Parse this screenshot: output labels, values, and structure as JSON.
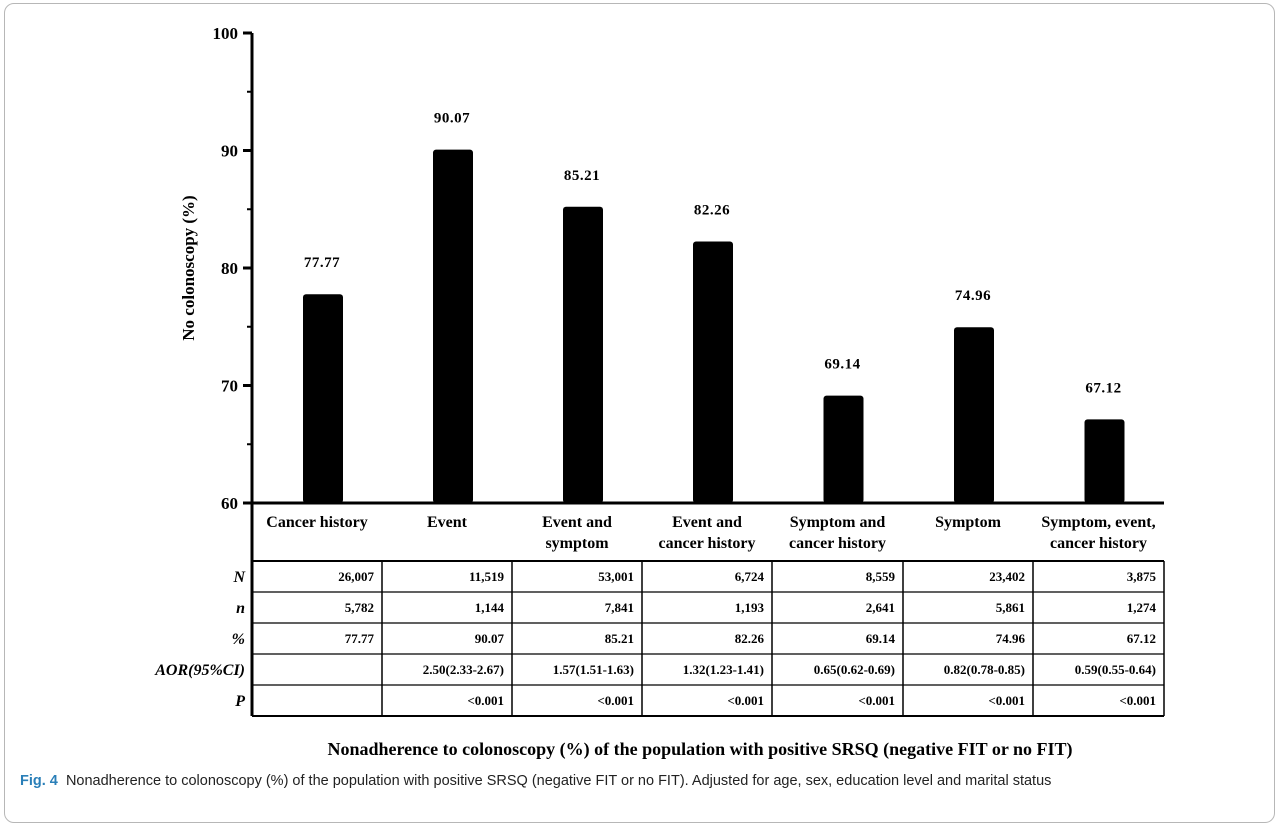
{
  "chart_data": {
    "type": "bar",
    "xlabel": "Nonadherence to colonoscopy (%) of the population with positive SRSQ (negative FIT or no FIT)",
    "ylabel": "No colonoscopy (%)",
    "ylim": [
      60,
      100
    ],
    "yticks": [
      60,
      70,
      80,
      90,
      100
    ],
    "bar_color": "#000000",
    "categories": [
      [
        "Cancer history"
      ],
      [
        "Event"
      ],
      [
        "Event and",
        "symptom"
      ],
      [
        "Event and",
        "cancer history"
      ],
      [
        "Symptom and",
        "cancer history"
      ],
      [
        "Symptom"
      ],
      [
        "Symptom, event,",
        "cancer history"
      ]
    ],
    "values": [
      77.77,
      90.07,
      85.21,
      82.26,
      69.14,
      74.96,
      67.12
    ],
    "value_labels": [
      "77.77",
      "90.07",
      "85.21",
      "82.26",
      "69.14",
      "74.96",
      "67.12"
    ],
    "table": {
      "row_labels": [
        "N",
        "n",
        "%",
        "AOR(95%CI)",
        "P"
      ],
      "rows": [
        [
          "26,007",
          "11,519",
          "53,001",
          "6,724",
          "8,559",
          "23,402",
          "3,875"
        ],
        [
          "5,782",
          "1,144",
          "7,841",
          "1,193",
          "2,641",
          "5,861",
          "1,274"
        ],
        [
          "77.77",
          "90.07",
          "85.21",
          "82.26",
          "69.14",
          "74.96",
          "67.12"
        ],
        [
          "",
          "2.50(2.33-2.67)",
          "1.57(1.51-1.63)",
          "1.32(1.23-1.41)",
          "0.65(0.62-0.69)",
          "0.82(0.78-0.85)",
          "0.59(0.55-0.64)"
        ],
        [
          "",
          "<0.001",
          "<0.001",
          "<0.001",
          "<0.001",
          "<0.001",
          "<0.001"
        ]
      ]
    }
  },
  "caption": {
    "label": "Fig. 4",
    "text": "Nonadherence to colonoscopy (%) of the population with positive SRSQ (negative FIT or no FIT). Adjusted for age, sex, education level and marital status"
  }
}
